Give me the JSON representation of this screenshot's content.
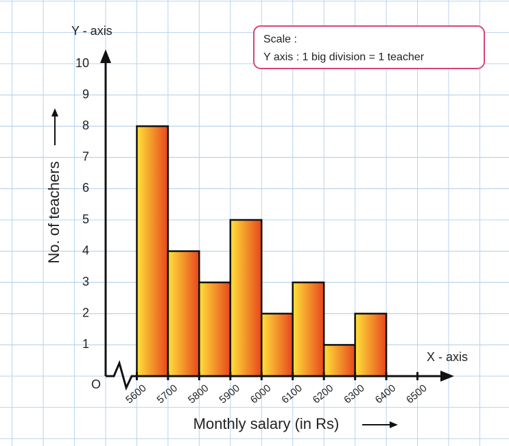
{
  "chart_data": {
    "type": "histogram",
    "y_axis_name": "Y - axis",
    "x_axis_name": "X - axis",
    "ylabel": "No. of teachers",
    "xlabel": "Monthly salary (in Rs)",
    "origin_label": "O",
    "scale_title": "Scale :",
    "scale_text": "Y axis : 1 big division = 1 teacher",
    "bins": [
      5600,
      5700,
      5800,
      5900,
      6000,
      6100,
      6200,
      6300,
      6400
    ],
    "values": [
      8,
      4,
      3,
      5,
      2,
      3,
      1,
      2
    ],
    "colors": [
      "#ffe23a",
      "#e8461d"
    ],
    "xlim": [
      5500,
      6600
    ],
    "ylim": [
      0,
      10
    ],
    "xticks": [
      5600,
      5700,
      5800,
      5900,
      6000,
      6100,
      6200,
      6300,
      6400,
      6500
    ],
    "yticks": [
      1,
      2,
      3,
      4,
      5,
      6,
      7,
      8,
      9,
      10
    ],
    "grid": true
  }
}
